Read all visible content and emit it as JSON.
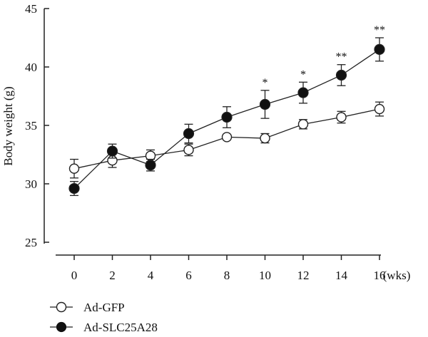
{
  "chart_data": {
    "type": "line",
    "title": "",
    "xlabel": "",
    "x_unit_label": "(wks)",
    "ylabel": "Body weight (g)",
    "ylim": [
      25,
      45
    ],
    "yticks": [
      25,
      30,
      35,
      40,
      45
    ],
    "xticks": [
      0,
      2,
      4,
      6,
      8,
      10,
      12,
      14,
      16
    ],
    "x": [
      0,
      2,
      4,
      6,
      8,
      10,
      12,
      14,
      16
    ],
    "series": [
      {
        "name": "Ad-GFP",
        "marker": "open-circle",
        "values": [
          31.3,
          32.0,
          32.4,
          32.9,
          34.0,
          33.9,
          35.1,
          35.7,
          36.4
        ],
        "errors": [
          0.8,
          0.6,
          0.5,
          0.5,
          0.0,
          0.4,
          0.4,
          0.5,
          0.6
        ]
      },
      {
        "name": "Ad-SLC25A28",
        "marker": "filled-circle",
        "values": [
          29.6,
          32.8,
          31.6,
          34.3,
          35.7,
          36.8,
          37.8,
          39.3,
          41.5
        ],
        "errors": [
          0.6,
          0.6,
          0.5,
          0.8,
          0.9,
          1.2,
          0.9,
          0.9,
          1.0
        ]
      }
    ],
    "annotations": [
      {
        "x": 10,
        "text": "*"
      },
      {
        "x": 12,
        "text": "*"
      },
      {
        "x": 14,
        "text": "**"
      },
      {
        "x": 16,
        "text": "**"
      }
    ],
    "legend": {
      "placement": "bottom-left",
      "entries": [
        {
          "label": "Ad-GFP",
          "marker": "open-circle"
        },
        {
          "label": "Ad-SLC25A28",
          "marker": "filled-circle"
        }
      ]
    }
  },
  "colors": {
    "line": "#222222",
    "marker_fill_open": "#ffffff",
    "marker_fill_solid": "#111111"
  }
}
